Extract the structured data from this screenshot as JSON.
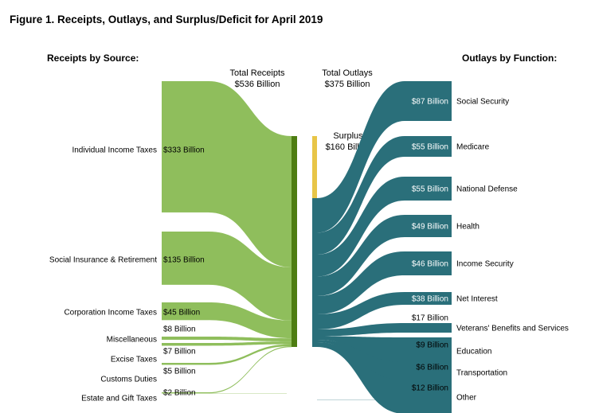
{
  "title": "Figure 1. Receipts, Outlays, and Surplus/Deficit for April 2019",
  "headers": {
    "receipts_by_source": "Receipts by Source:",
    "outlays_by_function": "Outlays by Function:",
    "total_receipts_line1": "Total Receipts",
    "total_receipts_line2": "$536 Billion",
    "total_outlays_line1": "Total Outlays",
    "total_outlays_line2": "$375 Billion",
    "surplus_line1": "Surplus",
    "surplus_line2": "$160 Billion"
  },
  "colors": {
    "receipts": "#8fbe5c",
    "receipts_bar": "#4e7d12",
    "surplus": "#e8c547",
    "outlays": "#2a6f7a"
  },
  "chart_data": {
    "type": "sankey",
    "title": "Figure 1. Receipts, Outlays, and Surplus/Deficit for April 2019",
    "units": "Billion",
    "total_receipts": 536,
    "total_outlays": 375,
    "surplus": 160,
    "receipts": [
      {
        "name": "Individual Income Taxes",
        "value": 333,
        "value_label": "$333 Billion"
      },
      {
        "name": "Social Insurance & Retirement",
        "value": 135,
        "value_label": "$135 Billion"
      },
      {
        "name": "Corporation Income Taxes",
        "value": 45,
        "value_label": "$45 Billion"
      },
      {
        "name": "Miscellaneous",
        "value": 8,
        "value_label": "$8 Billion"
      },
      {
        "name": "Excise Taxes",
        "value": 7,
        "value_label": "$7 Billion"
      },
      {
        "name": "Customs Duties",
        "value": 5,
        "value_label": "$5 Billion"
      },
      {
        "name": "Estate and Gift Taxes",
        "value": 2,
        "value_label": "$2 Billion"
      }
    ],
    "outlays": [
      {
        "name": "Social Security",
        "value": 87,
        "value_label": "$87 Billion"
      },
      {
        "name": "Medicare",
        "value": 55,
        "value_label": "$55 Billion"
      },
      {
        "name": "National Defense",
        "value": 55,
        "value_label": "$55 Billion"
      },
      {
        "name": "Health",
        "value": 49,
        "value_label": "$49 Billion"
      },
      {
        "name": "Income Security",
        "value": 46,
        "value_label": "$46 Billion"
      },
      {
        "name": "Net Interest",
        "value": 38,
        "value_label": "$38 Billion"
      },
      {
        "name": "Veterans' Benefits and Services",
        "value": 17,
        "value_label": "$17 Billion"
      },
      {
        "name": "Education",
        "value": 9,
        "value_label": "$9 Billion"
      },
      {
        "name": "Transportation",
        "value": 6,
        "value_label": "$6 Billion"
      },
      {
        "name": "Other",
        "value": 12,
        "value_label": "$12 Billion"
      }
    ]
  }
}
